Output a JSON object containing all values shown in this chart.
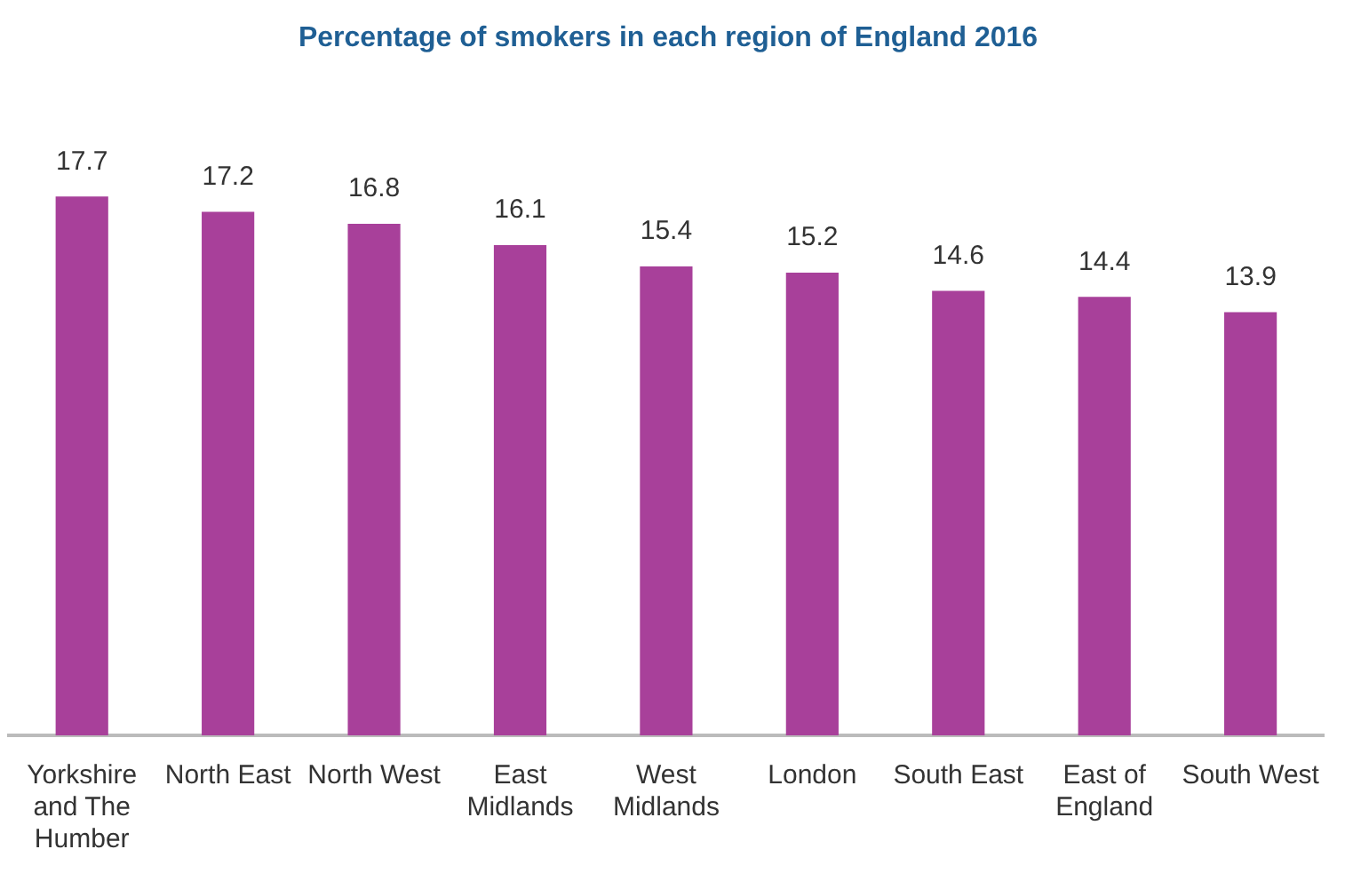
{
  "chart_data": {
    "type": "bar",
    "title": "Percentage of smokers in each region of England 2016",
    "categories": [
      "Yorkshire and The Humber",
      "North East",
      "North West",
      "East Midlands",
      "West Midlands",
      "London",
      "South East",
      "East of England",
      "South West"
    ],
    "values": [
      17.7,
      17.2,
      16.8,
      16.1,
      15.4,
      15.2,
      14.6,
      14.4,
      13.9
    ],
    "color": "#a8409a",
    "data_labels": true,
    "grid": false,
    "legend": false
  }
}
